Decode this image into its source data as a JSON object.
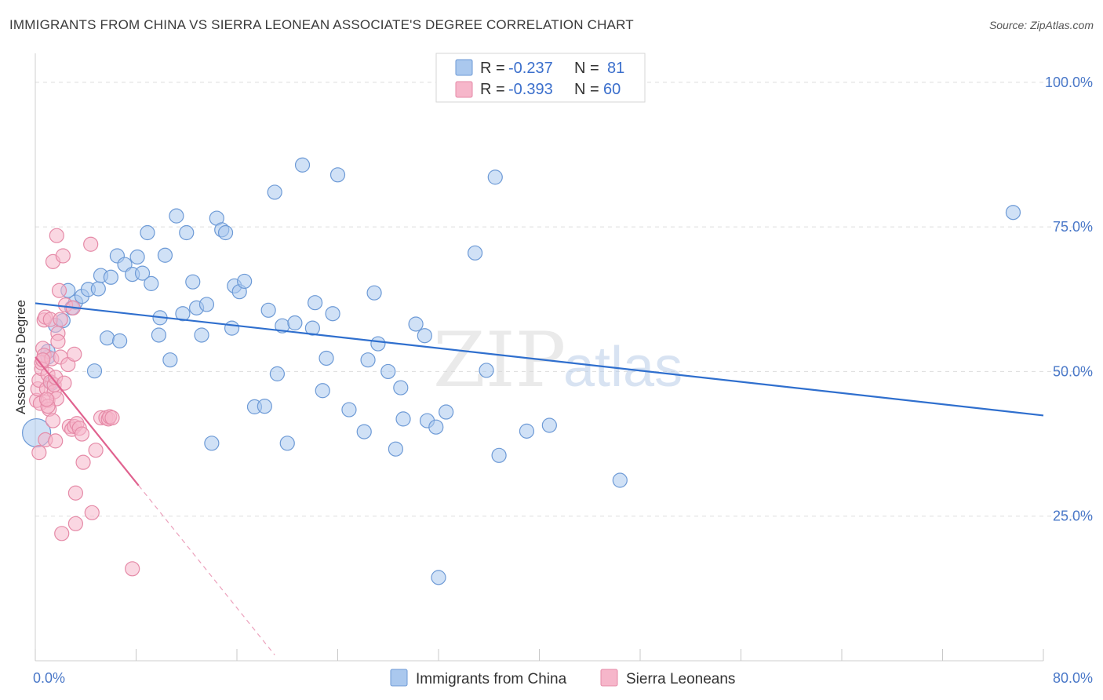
{
  "title": "IMMIGRANTS FROM CHINA VS SIERRA LEONEAN ASSOCIATE'S DEGREE CORRELATION CHART",
  "source": "Source: ZipAtlas.com",
  "watermark": {
    "zip": "ZIP",
    "atlas": "atlas"
  },
  "colors": {
    "blue_fill": "#aac8ee",
    "blue_stroke": "#6d9ad6",
    "blue_line": "#2f6fce",
    "pink_fill": "#f6b6ca",
    "pink_stroke": "#e58aa7",
    "pink_line": "#e0628f",
    "grid": "#dddddd",
    "tick_text": "#4a78c8"
  },
  "legend": {
    "rows": [
      {
        "r_label": "R = ",
        "r_value": "-0.237",
        "n_label": "N = ",
        "n_value": "81"
      },
      {
        "r_label": "R = ",
        "r_value": "-0.393",
        "n_label": "N = ",
        "n_value": "60"
      }
    ]
  },
  "bottom_legend": [
    "Immigrants from China",
    "Sierra Leoneans"
  ],
  "chart_data": {
    "type": "scatter",
    "title": "IMMIGRANTS FROM CHINA VS SIERRA LEONEAN ASSOCIATE'S DEGREE CORRELATION CHART",
    "xlabel": "",
    "ylabel": "Associate's Degree",
    "xlim": [
      0,
      80
    ],
    "ylim": [
      0,
      105
    ],
    "x_tick_labels": [
      "0.0%",
      "80.0%"
    ],
    "y_tick_labels": [
      "25.0%",
      "50.0%",
      "75.0%",
      "100.0%"
    ],
    "y_tick_values": [
      25,
      50,
      75,
      100
    ],
    "x_ticks_minor": [
      0,
      8,
      16,
      24,
      32,
      40,
      48,
      56,
      64,
      72,
      80
    ],
    "grid": true,
    "series": [
      {
        "name": "Immigrants from China",
        "color": "blue",
        "points": [
          [
            0.1,
            39.4
          ],
          [
            1.0,
            52.5
          ],
          [
            1.0,
            53.5
          ],
          [
            1.3,
            48.0
          ],
          [
            1.6,
            58.0
          ],
          [
            2.2,
            58.8
          ],
          [
            2.6,
            64.0
          ],
          [
            2.9,
            61.0
          ],
          [
            3.2,
            62.0
          ],
          [
            3.7,
            63.0
          ],
          [
            4.2,
            64.2
          ],
          [
            4.7,
            50.1
          ],
          [
            5.0,
            64.3
          ],
          [
            5.2,
            66.6
          ],
          [
            5.7,
            55.8
          ],
          [
            6.0,
            66.3
          ],
          [
            6.5,
            70.0
          ],
          [
            6.7,
            55.3
          ],
          [
            7.1,
            68.5
          ],
          [
            7.7,
            66.8
          ],
          [
            8.1,
            69.8
          ],
          [
            8.5,
            67.0
          ],
          [
            8.9,
            74.0
          ],
          [
            9.2,
            65.2
          ],
          [
            9.8,
            56.3
          ],
          [
            9.9,
            59.3
          ],
          [
            10.3,
            70.1
          ],
          [
            10.7,
            52.0
          ],
          [
            11.2,
            76.9
          ],
          [
            11.7,
            60.0
          ],
          [
            12.0,
            74.0
          ],
          [
            12.5,
            65.5
          ],
          [
            12.8,
            61.0
          ],
          [
            13.2,
            56.3
          ],
          [
            13.6,
            61.6
          ],
          [
            14.0,
            37.6
          ],
          [
            14.4,
            76.5
          ],
          [
            14.8,
            74.5
          ],
          [
            15.1,
            74.0
          ],
          [
            15.6,
            57.5
          ],
          [
            15.8,
            64.8
          ],
          [
            16.2,
            63.8
          ],
          [
            16.6,
            65.6
          ],
          [
            17.4,
            43.9
          ],
          [
            18.2,
            44.0
          ],
          [
            18.5,
            60.6
          ],
          [
            19.0,
            81.0
          ],
          [
            19.2,
            49.6
          ],
          [
            19.6,
            57.9
          ],
          [
            20.0,
            37.6
          ],
          [
            20.6,
            58.4
          ],
          [
            21.2,
            85.7
          ],
          [
            22.0,
            57.5
          ],
          [
            22.2,
            61.9
          ],
          [
            22.8,
            46.7
          ],
          [
            23.1,
            52.3
          ],
          [
            23.6,
            60.0
          ],
          [
            24.0,
            84.0
          ],
          [
            24.9,
            43.4
          ],
          [
            26.1,
            39.6
          ],
          [
            26.4,
            52.0
          ],
          [
            26.9,
            63.6
          ],
          [
            27.2,
            54.8
          ],
          [
            28.0,
            50.0
          ],
          [
            28.6,
            36.6
          ],
          [
            29.0,
            47.2
          ],
          [
            29.2,
            41.8
          ],
          [
            30.2,
            58.2
          ],
          [
            30.9,
            56.2
          ],
          [
            31.1,
            41.5
          ],
          [
            31.8,
            40.4
          ],
          [
            32.6,
            43.0
          ],
          [
            34.9,
            70.5
          ],
          [
            35.8,
            50.2
          ],
          [
            36.5,
            83.6
          ],
          [
            36.8,
            35.5
          ],
          [
            39.0,
            39.7
          ],
          [
            40.8,
            40.7
          ],
          [
            46.4,
            31.2
          ],
          [
            32.0,
            14.4
          ],
          [
            77.6,
            77.5
          ]
        ],
        "trendline": {
          "x": [
            0,
            80
          ],
          "y": [
            61.8,
            42.4
          ]
        }
      },
      {
        "name": "Sierra Leoneans",
        "color": "pink",
        "points": [
          [
            0.1,
            45.0
          ],
          [
            0.2,
            47.0
          ],
          [
            0.3,
            48.5
          ],
          [
            0.3,
            36.0
          ],
          [
            0.4,
            44.5
          ],
          [
            0.5,
            50.5
          ],
          [
            0.5,
            51.5
          ],
          [
            0.6,
            54.0
          ],
          [
            0.7,
            52.8
          ],
          [
            0.7,
            58.9
          ],
          [
            0.8,
            38.2
          ],
          [
            0.8,
            59.4
          ],
          [
            0.9,
            47.0
          ],
          [
            1.0,
            49.5
          ],
          [
            1.0,
            45.0
          ],
          [
            1.1,
            43.5
          ],
          [
            1.2,
            48.2
          ],
          [
            1.2,
            59.0
          ],
          [
            1.3,
            52.2
          ],
          [
            1.4,
            69.0
          ],
          [
            1.4,
            41.5
          ],
          [
            1.5,
            46.5
          ],
          [
            1.5,
            47.7
          ],
          [
            1.6,
            49.0
          ],
          [
            1.6,
            38.0
          ],
          [
            1.7,
            73.5
          ],
          [
            1.7,
            45.3
          ],
          [
            1.8,
            56.6
          ],
          [
            1.8,
            55.2
          ],
          [
            1.9,
            64.0
          ],
          [
            2.0,
            59.0
          ],
          [
            2.0,
            52.5
          ],
          [
            2.1,
            22.0
          ],
          [
            2.2,
            70.0
          ],
          [
            2.4,
            61.5
          ],
          [
            2.6,
            51.2
          ],
          [
            2.7,
            40.5
          ],
          [
            2.9,
            40.0
          ],
          [
            3.1,
            40.5
          ],
          [
            3.3,
            41.0
          ],
          [
            3.5,
            40.2
          ],
          [
            3.0,
            61.0
          ],
          [
            3.1,
            53.0
          ],
          [
            3.2,
            23.7
          ],
          [
            3.2,
            29.0
          ],
          [
            3.7,
            39.2
          ],
          [
            3.8,
            34.3
          ],
          [
            4.4,
            72.0
          ],
          [
            4.5,
            25.6
          ],
          [
            4.8,
            36.4
          ],
          [
            5.2,
            42.0
          ],
          [
            5.6,
            42.0
          ],
          [
            5.8,
            41.8
          ],
          [
            5.9,
            42.2
          ],
          [
            6.1,
            42.0
          ],
          [
            7.7,
            15.9
          ],
          [
            1.0,
            44.0
          ],
          [
            0.6,
            52.0
          ],
          [
            2.3,
            48.0
          ],
          [
            0.9,
            45.2
          ]
        ],
        "trendline": {
          "x": [
            0,
            8.2
          ],
          "y": [
            52.5,
            30.3
          ]
        },
        "trendline_extension": {
          "x": [
            8.2,
            19.0
          ],
          "y": [
            30.3,
            1.0
          ]
        }
      }
    ]
  }
}
